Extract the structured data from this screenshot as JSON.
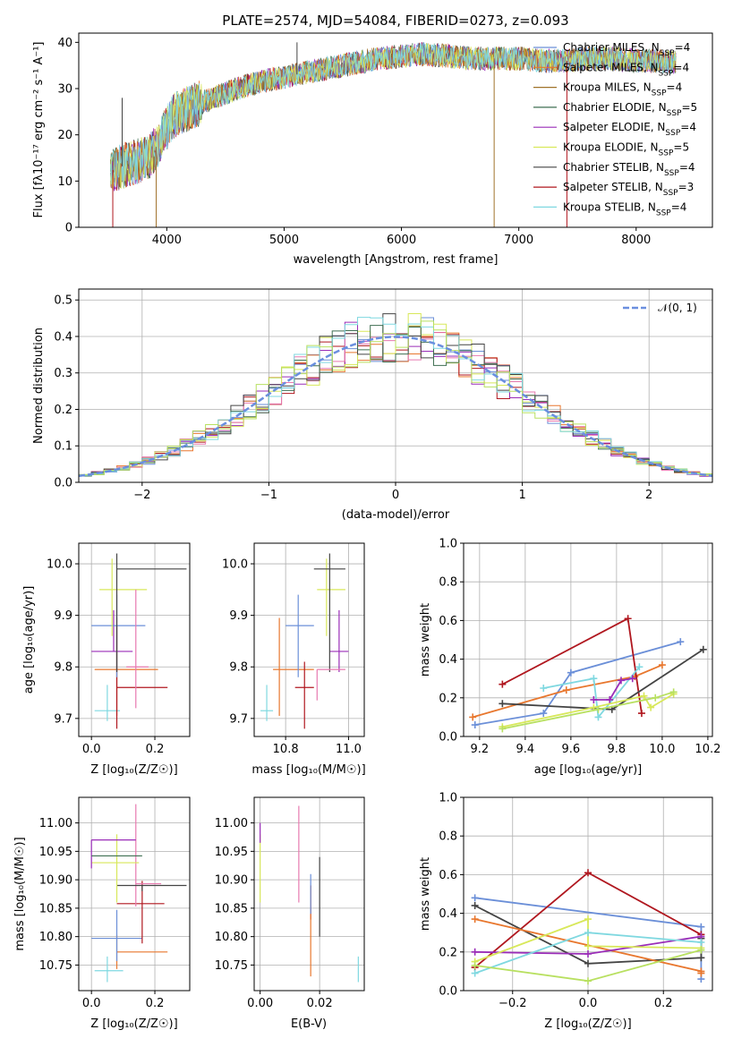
{
  "colors": {
    "Chabrier MILES": "#6b8fd8",
    "Salpeter MILES": "#e8772e",
    "Kroupa MILES": "#a0722a",
    "Chabrier ELODIE": "#3f6f52",
    "Salpeter ELODIE": "#9a2db8",
    "Kroupa ELODIE": "#d8e85a",
    "Chabrier STELIB": "#444444",
    "Salpeter STELIB": "#b0171f",
    "Kroupa STELIB": "#7fd8e0",
    "extra_pink": "#e87ab0",
    "extra_green": "#b8e060",
    "gaussian": "#6a8fdf"
  },
  "chart_data": [
    {
      "id": "spectrum",
      "type": "line",
      "title": "PLATE=2574, MJD=54084, FIBERID=0273, z=0.093",
      "xlabel": "wavelength [Angstrom, rest frame]",
      "ylabel": "Flux [fλ10⁻¹⁷ erg cm⁻² s⁻¹ A⁻¹]",
      "xlim": [
        3250,
        8650
      ],
      "ylim": [
        0,
        42
      ],
      "xticks": [
        "4000",
        "5000",
        "6000",
        "7000",
        "8000"
      ],
      "yticks": [
        "0",
        "10",
        "20",
        "30",
        "40"
      ],
      "legend": [
        "Chabrier MILES, N_SSP=4",
        "Salpeter MILES, N_SSP=4",
        "Kroupa MILES, N_SSP=4",
        "Chabrier ELODIE, N_SSP=5",
        "Salpeter ELODIE, N_SSP=4",
        "Kroupa ELODIE, N_SSP=5",
        "Chabrier STELIB, N_SSP=4",
        "Salpeter STELIB, N_SSP=3",
        "Kroupa STELIB, N_SSP=4"
      ],
      "continuum": {
        "x": [
          3500,
          3700,
          3850,
          3950,
          4050,
          4200,
          4400,
          4600,
          4800,
          5000,
          5200,
          5400,
          5600,
          5800,
          6000,
          6200,
          6400,
          6600,
          6800,
          7000,
          7200,
          7400,
          7600,
          7800,
          8000,
          8200,
          8350
        ],
        "y": [
          12,
          14,
          15,
          19,
          24,
          26,
          28,
          30,
          31.5,
          32.5,
          33.5,
          34.5,
          35.5,
          36.5,
          37,
          37.5,
          37,
          36.5,
          36.5,
          36.5,
          36,
          36,
          36.5,
          36.5,
          36,
          36,
          35.5
        ]
      }
    },
    {
      "id": "residuals",
      "type": "line",
      "xlabel": "(data-model)/error",
      "ylabel": "Normed distribution",
      "xlim": [
        -2.5,
        2.5
      ],
      "ylim": [
        0,
        0.53
      ],
      "xticks": [
        "−2",
        "−1",
        "0",
        "1",
        "2"
      ],
      "yticks": [
        "0.0",
        "0.1",
        "0.2",
        "0.3",
        "0.4",
        "0.5"
      ],
      "legend_label": "𝒩(0, 1)",
      "histogram_bins": 50
    },
    {
      "id": "age-vs-Z",
      "type": "scatter",
      "xlabel": "Z [log₁₀(Z/Z☉)]",
      "ylabel": "age  [log₁₀(age/yr)]",
      "xlim": [
        -0.04,
        0.31
      ],
      "ylim": [
        9.665,
        10.04
      ],
      "xticks": [
        "0.0",
        "0.2"
      ],
      "yticks": [
        "9.7",
        "9.8",
        "9.9",
        "10.0"
      ],
      "points": [
        {
          "color": "#7fd8e0",
          "x": 0.05,
          "xerr": [
            0.04,
            0.04
          ],
          "y": 9.715,
          "yerr": [
            0.02,
            0.05
          ]
        },
        {
          "color": "#e8772e",
          "x": 0.08,
          "xerr": [
            0.07,
            0.13
          ],
          "y": 9.795,
          "yerr": [
            0.09,
            0.1
          ]
        },
        {
          "color": "#b0171f",
          "x": 0.08,
          "xerr": [
            0.0,
            0.16
          ],
          "y": 9.76,
          "yerr": [
            0.08,
            0.12
          ]
        },
        {
          "color": "#9a2db8",
          "x": 0.07,
          "xerr": [
            0.07,
            0.06
          ],
          "y": 9.83,
          "yerr": [
            0.0,
            0.08
          ]
        },
        {
          "color": "#6b8fd8",
          "x": 0.08,
          "xerr": [
            0.08,
            0.09
          ],
          "y": 9.88,
          "yerr": [
            0.1,
            0.06
          ]
        },
        {
          "color": "#d8e85a",
          "x": 0.065,
          "xerr": [
            0.04,
            0.11
          ],
          "y": 9.95,
          "yerr": [
            0.09,
            0.06
          ]
        },
        {
          "color": "#444444",
          "x": 0.08,
          "xerr": [
            0.0,
            0.22
          ],
          "y": 9.99,
          "yerr": [
            0.2,
            0.03
          ]
        },
        {
          "color": "#e87ab0",
          "x": 0.14,
          "xerr": [
            0.03,
            0.04
          ],
          "y": 9.8,
          "yerr": [
            0.08,
            0.15
          ]
        }
      ]
    },
    {
      "id": "age-vs-mass",
      "type": "scatter",
      "xlabel": "mass [log₁₀(M/M☉)]",
      "xlim": [
        10.7,
        11.05
      ],
      "ylim": [
        9.665,
        10.04
      ],
      "xticks": [
        "10.8",
        "11.0"
      ],
      "yticks": [
        "9.7",
        "9.8",
        "9.9",
        "10.0"
      ],
      "points": [
        {
          "color": "#7fd8e0",
          "x": 10.74,
          "xerr": [
            0.02,
            0.02
          ],
          "y": 9.715,
          "yerr": [
            0.02,
            0.05
          ]
        },
        {
          "color": "#e8772e",
          "x": 10.78,
          "xerr": [
            0.02,
            0.11
          ],
          "y": 9.795,
          "yerr": [
            0.09,
            0.1
          ]
        },
        {
          "color": "#b0171f",
          "x": 10.86,
          "xerr": [
            0.03,
            0.03
          ],
          "y": 9.76,
          "yerr": [
            0.08,
            0.05
          ]
        },
        {
          "color": "#9a2db8",
          "x": 10.97,
          "xerr": [
            0.03,
            0.03
          ],
          "y": 9.83,
          "yerr": [
            0.04,
            0.08
          ]
        },
        {
          "color": "#6b8fd8",
          "x": 10.84,
          "xerr": [
            0.04,
            0.05
          ],
          "y": 9.88,
          "yerr": [
            0.1,
            0.06
          ]
        },
        {
          "color": "#d8e85a",
          "x": 10.93,
          "xerr": [
            0.03,
            0.06
          ],
          "y": 9.95,
          "yerr": [
            0.09,
            0.06
          ]
        },
        {
          "color": "#444444",
          "x": 10.94,
          "xerr": [
            0.05,
            0.05
          ],
          "y": 9.99,
          "yerr": [
            0.2,
            0.03
          ]
        },
        {
          "color": "#e87ab0",
          "x": 10.9,
          "xerr": [
            0.0,
            0.09
          ],
          "y": 9.795,
          "yerr": [
            0.06,
            0.0
          ]
        }
      ]
    },
    {
      "id": "mass-weight-vs-age",
      "type": "line",
      "xlabel": "age  [log₁₀(age/yr)]",
      "ylabel": "mass weight",
      "xlim": [
        9.13,
        10.22
      ],
      "ylim": [
        0.0,
        1.0
      ],
      "xticks": [
        "9.2",
        "9.4",
        "9.6",
        "9.8",
        "10.0",
        "10.2"
      ],
      "yticks": [
        "0.0",
        "0.2",
        "0.4",
        "0.6",
        "0.8",
        "1.0"
      ],
      "series": [
        {
          "color": "#6b8fd8",
          "x": [
            9.18,
            9.48,
            9.6,
            10.08
          ],
          "y": [
            0.06,
            0.12,
            0.33,
            0.49
          ]
        },
        {
          "color": "#e8772e",
          "x": [
            9.17,
            9.58,
            9.88,
            10.0
          ],
          "y": [
            0.1,
            0.24,
            0.31,
            0.37
          ]
        },
        {
          "color": "#b0171f",
          "x": [
            9.3,
            9.85,
            9.91
          ],
          "y": [
            0.27,
            0.61,
            0.12
          ]
        },
        {
          "color": "#444444",
          "x": [
            9.3,
            9.78,
            10.18
          ],
          "y": [
            0.17,
            0.14,
            0.45
          ]
        },
        {
          "color": "#7fd8e0",
          "x": [
            9.48,
            9.7,
            9.72,
            9.9
          ],
          "y": [
            0.25,
            0.3,
            0.1,
            0.36
          ]
        },
        {
          "color": "#9a2db8",
          "x": [
            9.7,
            9.77,
            9.82,
            9.87
          ],
          "y": [
            0.19,
            0.19,
            0.29,
            0.3
          ]
        },
        {
          "color": "#d8e85a",
          "x": [
            9.3,
            9.7,
            9.92,
            9.95,
            10.05
          ],
          "y": [
            0.05,
            0.15,
            0.21,
            0.15,
            0.22
          ]
        },
        {
          "color": "#b8e060",
          "x": [
            9.3,
            9.72,
            9.97,
            10.05
          ],
          "y": [
            0.04,
            0.14,
            0.2,
            0.23
          ]
        }
      ]
    },
    {
      "id": "mass-vs-Z",
      "type": "scatter",
      "xlabel": "Z [log₁₀(Z/Z☉)]",
      "ylabel": "mass [log₁₀(M/M☉)]",
      "xlim": [
        -0.04,
        0.31
      ],
      "ylim": [
        10.705,
        11.045
      ],
      "xticks": [
        "0.0",
        "0.2"
      ],
      "yticks": [
        "10.75",
        "10.80",
        "10.85",
        "10.90",
        "10.95",
        "11.00"
      ],
      "points": [
        {
          "color": "#7fd8e0",
          "x": 0.05,
          "xerr": [
            0.04,
            0.05
          ],
          "y": 10.74,
          "yerr": [
            0.02,
            0.025
          ]
        },
        {
          "color": "#e8772e",
          "x": 0.08,
          "xerr": [
            0.0,
            0.16
          ],
          "y": 10.773,
          "yerr": [
            0.03,
            0.03
          ]
        },
        {
          "color": "#6b8fd8",
          "x": 0.08,
          "xerr": [
            0.08,
            0.08
          ],
          "y": 10.797,
          "yerr": [
            0.04,
            0.05
          ]
        },
        {
          "color": "#b0171f",
          "x": 0.16,
          "xerr": [
            0.08,
            0.07
          ],
          "y": 10.858,
          "yerr": [
            0.07,
            0.04
          ]
        },
        {
          "color": "#e87ab0",
          "x": 0.14,
          "xerr": [
            0.0,
            0.08
          ],
          "y": 10.893,
          "yerr": [
            0.04,
            0.14
          ]
        },
        {
          "color": "#444444",
          "x": 0.16,
          "xerr": [
            0.08,
            0.14
          ],
          "y": 10.89,
          "yerr": [
            0.01,
            0.0
          ]
        },
        {
          "color": "#d8e85a",
          "x": 0.08,
          "xerr": [
            0.08,
            0.07
          ],
          "y": 10.93,
          "yerr": [
            0.07,
            0.05
          ]
        },
        {
          "color": "#9a2db8",
          "x": 0.0,
          "xerr": [
            0.0,
            0.14
          ],
          "y": 10.97,
          "yerr": [
            0.05,
            0.0
          ]
        },
        {
          "color": "#3f6f52",
          "x": 0.08,
          "xerr": [
            0.08,
            0.08
          ],
          "y": 10.942,
          "yerr": [
            0.0,
            0.0
          ]
        }
      ]
    },
    {
      "id": "mass-vs-EBV",
      "type": "scatter",
      "xlabel": "E(B-V)",
      "xlim": [
        -0.002,
        0.035
      ],
      "ylim": [
        10.705,
        11.045
      ],
      "xticks": [
        "0.00",
        "0.02"
      ],
      "yticks": [
        "10.75",
        "10.80",
        "10.85",
        "10.90",
        "10.95",
        "11.00"
      ],
      "points": [
        {
          "color": "#d8e85a",
          "x": 0.0,
          "y": 10.93,
          "yerr": [
            0.07,
            0.05
          ]
        },
        {
          "color": "#e87ab0",
          "x": 0.013,
          "y": 10.95,
          "yerr": [
            0.09,
            0.08
          ]
        },
        {
          "color": "#b0171f",
          "x": 0.017,
          "y": 10.86,
          "yerr": [
            0.03,
            0.03
          ]
        },
        {
          "color": "#e8772e",
          "x": 0.017,
          "y": 10.8,
          "yerr": [
            0.07,
            0.09
          ]
        },
        {
          "color": "#6b8fd8",
          "x": 0.017,
          "y": 10.87,
          "yerr": [
            0.03,
            0.04
          ]
        },
        {
          "color": "#444444",
          "x": 0.02,
          "y": 10.87,
          "yerr": [
            0.07,
            0.07
          ]
        },
        {
          "color": "#7fd8e0",
          "x": 0.033,
          "y": 10.74,
          "yerr": [
            0.02,
            0.025
          ]
        },
        {
          "color": "#9a2db8",
          "x": 0.0,
          "y": 10.98,
          "yerr": [
            0.015,
            0.02
          ]
        }
      ]
    },
    {
      "id": "mass-weight-vs-Z",
      "type": "line",
      "xlabel": "Z [log₁₀(Z/Z☉)]",
      "ylabel": "mass weight",
      "xlim": [
        -0.33,
        0.33
      ],
      "ylim": [
        0.0,
        1.0
      ],
      "xticks": [
        "−0.2",
        "0.0",
        "0.2"
      ],
      "yticks": [
        "0.0",
        "0.2",
        "0.4",
        "0.6",
        "0.8",
        "1.0"
      ],
      "series": [
        {
          "color": "#6b8fd8",
          "x": [
            -0.3,
            0.3,
            0.3
          ],
          "y": [
            0.48,
            0.33,
            0.06
          ]
        },
        {
          "color": "#b0171f",
          "x": [
            -0.3,
            0.0,
            0.3
          ],
          "y": [
            0.12,
            0.61,
            0.29
          ]
        },
        {
          "color": "#444444",
          "x": [
            -0.3,
            0.0,
            0.3,
            0.3
          ],
          "y": [
            0.44,
            0.14,
            0.17,
            0.27
          ]
        },
        {
          "color": "#e8772e",
          "x": [
            -0.3,
            0.3,
            0.3
          ],
          "y": [
            0.37,
            0.1,
            0.09
          ]
        },
        {
          "color": "#9a2db8",
          "x": [
            -0.3,
            0.0,
            0.3
          ],
          "y": [
            0.2,
            0.19,
            0.28
          ]
        },
        {
          "color": "#d8e85a",
          "x": [
            -0.3,
            0.0,
            0.0,
            0.3
          ],
          "y": [
            0.15,
            0.37,
            0.23,
            0.22
          ]
        },
        {
          "color": "#7fd8e0",
          "x": [
            -0.3,
            0.0,
            0.3
          ],
          "y": [
            0.09,
            0.3,
            0.25
          ]
        },
        {
          "color": "#b8e060",
          "x": [
            -0.3,
            0.0,
            0.3
          ],
          "y": [
            0.13,
            0.05,
            0.21
          ]
        }
      ]
    }
  ]
}
